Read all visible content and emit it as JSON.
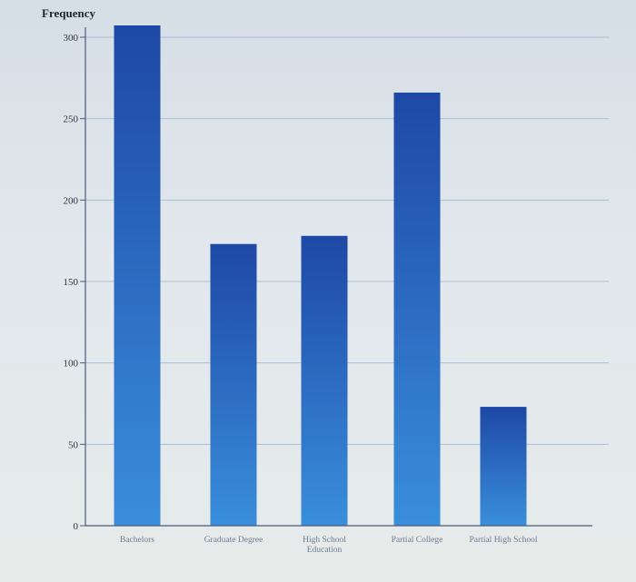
{
  "chart_data": {
    "type": "bar",
    "title": "",
    "xlabel": "",
    "ylabel": "Frequency",
    "categories": [
      [
        "Bachelors"
      ],
      [
        "Graduate Degree"
      ],
      [
        "High School",
        "Education"
      ],
      [
        "Partial College"
      ],
      [
        "Partial High School"
      ]
    ],
    "values": [
      309,
      173,
      178,
      266,
      73
    ],
    "ylim": [
      0,
      300
    ],
    "yticks": [
      0,
      50,
      100,
      150,
      200,
      250,
      300
    ],
    "grid": true,
    "bar_color_top": "#1e48a6",
    "bar_color_bottom": "#3a8edc",
    "axis_color": "#4a5a7a",
    "grid_color": "#a9bfd6"
  }
}
